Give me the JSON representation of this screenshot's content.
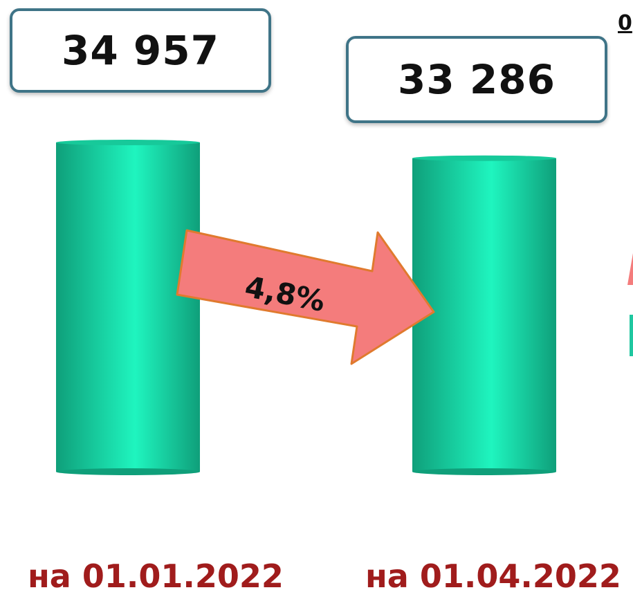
{
  "chart_data": {
    "type": "bar",
    "categories": [
      "на 01.01.2022",
      "на 01.04.2022"
    ],
    "values": [
      34957,
      33286
    ],
    "value_labels": [
      "34 957",
      "33 286"
    ],
    "change_label": "4,8%",
    "partial_next_label": "0",
    "colors": {
      "bar": "#1fe3b0",
      "bar_dark": "#0f9f7a",
      "arrow": "#f47c7c",
      "arrow_border": "#e07a2e",
      "label": "#a01c1c",
      "box_border": "#3f7487"
    }
  }
}
